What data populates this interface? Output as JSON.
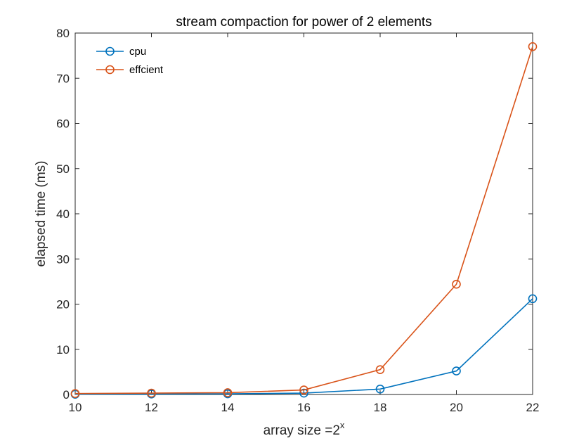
{
  "chart_data": {
    "type": "line",
    "title": "stream compaction for power of 2 elements",
    "xlabel": {
      "base": "array size =2",
      "superscript": "x"
    },
    "ylabel": "elapsed time (ms)",
    "x": [
      10,
      12,
      14,
      16,
      18,
      20,
      22
    ],
    "xlim": [
      10,
      22
    ],
    "ylim": [
      0,
      80
    ],
    "xticks": [
      "10",
      "12",
      "14",
      "16",
      "18",
      "20",
      "22"
    ],
    "yticks": [
      "0",
      "10",
      "20",
      "30",
      "40",
      "50",
      "60",
      "70",
      "80"
    ],
    "grid": false,
    "legend_position": "top-left",
    "series": [
      {
        "name": "cpu",
        "color": "#0072BD",
        "marker": "circle",
        "values": [
          0.05,
          0.1,
          0.15,
          0.3,
          1.2,
          5.2,
          21.2
        ]
      },
      {
        "name": "effcient",
        "color": "#D95319",
        "marker": "circle",
        "values": [
          0.2,
          0.3,
          0.4,
          1.0,
          5.5,
          24.4,
          77.0
        ]
      }
    ]
  }
}
